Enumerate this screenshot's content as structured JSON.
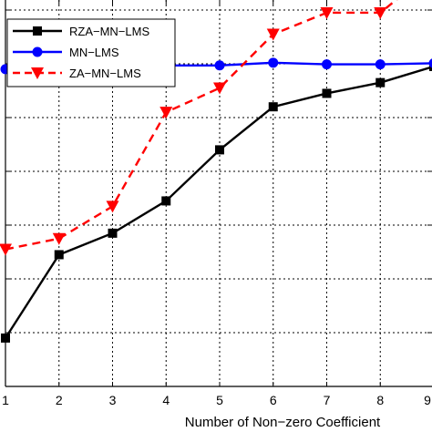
{
  "chart_data": {
    "type": "line",
    "xlabel": "Number of Non−zero Coefficient",
    "ylabel": "",
    "title": "",
    "x": [
      1,
      2,
      3,
      4,
      5,
      6,
      7,
      8,
      9
    ],
    "x_tick_labels": [
      "1",
      "2",
      "3",
      "4",
      "5",
      "6",
      "7",
      "8",
      "9"
    ],
    "xlim": [
      1,
      9
    ],
    "ylim": [
      0,
      8
    ],
    "grid": true,
    "legend_position": "top-left",
    "series": [
      {
        "name": "RZA−MN−LMS",
        "color": "#000000",
        "line_style": "solid",
        "marker": "square",
        "values": [
          0.9,
          2.45,
          2.85,
          3.45,
          4.4,
          5.2,
          5.45,
          5.65,
          5.95
        ]
      },
      {
        "name": "MN−LMS",
        "color": "#0000ff",
        "line_style": "solid",
        "marker": "circle",
        "values": [
          5.9,
          6.0,
          5.99,
          5.97,
          5.97,
          6.02,
          5.99,
          5.99,
          6.01
        ]
      },
      {
        "name": "ZA−MN−LMS",
        "color": "#ff0000",
        "line_style": "dashed",
        "marker": "triangle-down",
        "values": [
          2.55,
          2.75,
          3.35,
          5.1,
          5.55,
          6.55,
          6.95,
          6.95,
          7.75
        ]
      }
    ]
  }
}
